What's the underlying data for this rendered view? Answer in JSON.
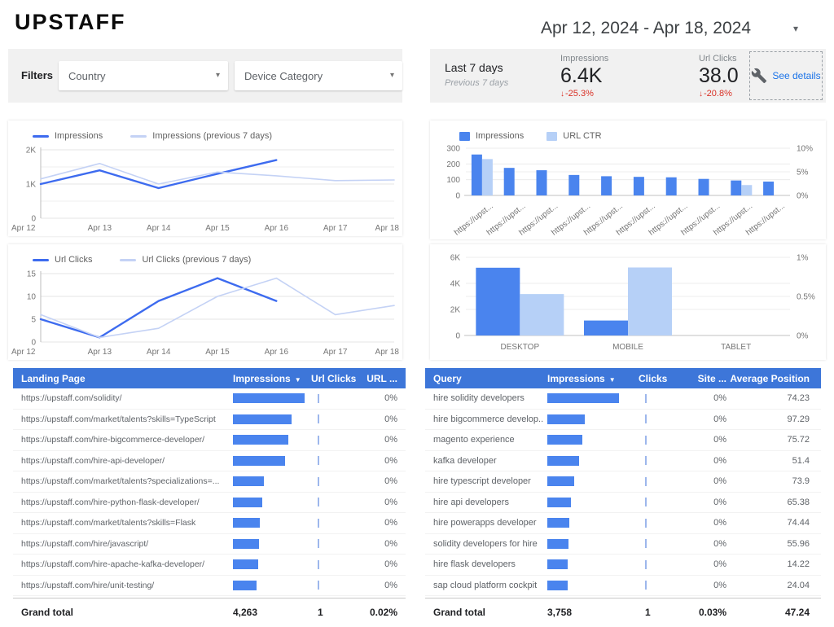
{
  "header": {
    "logo": "UPSTAFF",
    "date_range": "Apr 12, 2024 - Apr 18, 2024"
  },
  "filters": {
    "label": "Filters",
    "country": "Country",
    "device_category": "Device Category"
  },
  "scorecard": {
    "period": "Last 7 days",
    "period_sub": "Previous 7 days",
    "metrics": [
      {
        "label": "Impressions",
        "value": "6.4K",
        "change": "-25.3%",
        "direction": "down"
      },
      {
        "label": "Url Clicks",
        "value": "38.0",
        "change": "-20.8%",
        "direction": "down"
      }
    ],
    "see_details": "See details"
  },
  "colors": {
    "series_primary": "#3d6bef",
    "series_secondary": "#c4d2f5",
    "bar_primary": "#4a84ee",
    "bar_secondary": "#b6d0f7",
    "table_header": "#3d76d9",
    "link": "#1a73e8",
    "negative": "#d93025",
    "filter_bg": "#f1f1f1"
  },
  "chart_data": [
    {
      "id": "impressions-line",
      "type": "line",
      "legend": [
        "Impressions",
        "Impressions (previous 7 days)"
      ],
      "x": [
        "Apr 12",
        "Apr 13",
        "Apr 14",
        "Apr 15",
        "Apr 16",
        "Apr 17",
        "Apr 18"
      ],
      "series": [
        {
          "name": "Impressions",
          "values": [
            1000,
            1400,
            880,
            1300,
            1700,
            null,
            null
          ]
        },
        {
          "name": "Impressions (previous 7 days)",
          "values": [
            1150,
            1600,
            1000,
            1350,
            1240,
            1100,
            1120
          ]
        }
      ],
      "ylim": [
        0,
        2000
      ],
      "yticks": [
        {
          "v": 0,
          "label": "0"
        },
        {
          "v": 1000,
          "label": "1K"
        },
        {
          "v": 2000,
          "label": "2K"
        }
      ],
      "grid_values": [
        500,
        1500
      ]
    },
    {
      "id": "impressions-by-url",
      "type": "bar",
      "legend": [
        "Impressions",
        "URL CTR"
      ],
      "categories": [
        "https://upst...",
        "https://upst...",
        "https://upst...",
        "https://upst...",
        "https://upst...",
        "https://upst...",
        "https://upst...",
        "https://upst...",
        "https://upst...",
        "https://upst..."
      ],
      "rotate_labels": true,
      "series": [
        {
          "name": "Impressions",
          "axis": "left",
          "values": [
            260,
            175,
            160,
            130,
            122,
            118,
            115,
            105,
            95,
            88
          ]
        },
        {
          "name": "URL CTR",
          "axis": "right",
          "values": [
            7.7,
            0,
            0,
            0,
            0,
            0,
            0,
            0,
            2.2,
            0
          ]
        }
      ],
      "left_axis": {
        "max": 300,
        "ticks": [
          {
            "v": 0,
            "label": "0"
          },
          {
            "v": 100,
            "label": "100"
          },
          {
            "v": 200,
            "label": "200"
          },
          {
            "v": 300,
            "label": "300"
          }
        ]
      },
      "right_axis": {
        "max": 10,
        "ticks": [
          {
            "v": 0,
            "label": "0%"
          },
          {
            "v": 5,
            "label": "5%"
          },
          {
            "v": 10,
            "label": "10%"
          }
        ]
      }
    },
    {
      "id": "url-clicks-line",
      "type": "line",
      "legend": [
        "Url Clicks",
        "Url Clicks (previous 7 days)"
      ],
      "x": [
        "Apr 12",
        "Apr 13",
        "Apr 14",
        "Apr 15",
        "Apr 16",
        "Apr 17",
        "Apr 18"
      ],
      "series": [
        {
          "name": "Url Clicks",
          "values": [
            5,
            1,
            9,
            14,
            9,
            null,
            null
          ]
        },
        {
          "name": "Url Clicks (previous 7 days)",
          "values": [
            6,
            1,
            3,
            10,
            14,
            6,
            8
          ]
        }
      ],
      "ylim": [
        0,
        15
      ],
      "yticks": [
        {
          "v": 0,
          "label": "0"
        },
        {
          "v": 5,
          "label": "5"
        },
        {
          "v": 10,
          "label": "10"
        },
        {
          "v": 15,
          "label": "15"
        }
      ],
      "grid_values": []
    },
    {
      "id": "impressions-by-device",
      "type": "bar",
      "legend": [],
      "categories": [
        "DESKTOP",
        "MOBILE",
        "TABLET"
      ],
      "rotate_labels": false,
      "series": [
        {
          "name": "Impressions",
          "axis": "left",
          "values": [
            5200,
            1150,
            0
          ]
        },
        {
          "name": "URL CTR",
          "axis": "right",
          "values": [
            0.53,
            0.87,
            0
          ]
        }
      ],
      "left_axis": {
        "max": 6000,
        "ticks": [
          {
            "v": 0,
            "label": "0"
          },
          {
            "v": 2000,
            "label": "2K"
          },
          {
            "v": 4000,
            "label": "4K"
          },
          {
            "v": 6000,
            "label": "6K"
          }
        ]
      },
      "right_axis": {
        "max": 1,
        "ticks": [
          {
            "v": 0,
            "label": "0%"
          },
          {
            "v": 0.5,
            "label": "0.5%"
          },
          {
            "v": 1,
            "label": "1%"
          }
        ]
      }
    }
  ],
  "tables": {
    "landing_table": {
      "headers": [
        "Landing Page",
        "Impressions",
        "Url Clicks",
        "URL ..."
      ],
      "rows": [
        {
          "page": "https://upstaff.com/solidity/",
          "bar_pct": 100,
          "url_ctr": "0%"
        },
        {
          "page": "https://upstaff.com/market/talents?skills=TypeScript",
          "bar_pct": 82,
          "url_ctr": "0%"
        },
        {
          "page": "https://upstaff.com/hire-bigcommerce-developer/",
          "bar_pct": 77,
          "url_ctr": "0%"
        },
        {
          "page": "https://upstaff.com/hire-api-developer/",
          "bar_pct": 73,
          "url_ctr": "0%"
        },
        {
          "page": "https://upstaff.com/market/talents?specializations=...",
          "bar_pct": 43,
          "url_ctr": "0%"
        },
        {
          "page": "https://upstaff.com/hire-python-flask-developer/",
          "bar_pct": 41,
          "url_ctr": "0%"
        },
        {
          "page": "https://upstaff.com/market/talents?skills=Flask",
          "bar_pct": 38,
          "url_ctr": "0%"
        },
        {
          "page": "https://upstaff.com/hire/javascript/",
          "bar_pct": 36,
          "url_ctr": "0%"
        },
        {
          "page": "https://upstaff.com/hire-apache-kafka-developer/",
          "bar_pct": 35,
          "url_ctr": "0%"
        },
        {
          "page": "https://upstaff.com/hire/unit-testing/",
          "bar_pct": 33,
          "url_ctr": "0%"
        }
      ],
      "grand_total": {
        "label": "Grand total",
        "impressions": "4,263",
        "url_clicks": "1",
        "url_ctr": "0.02%"
      }
    },
    "query_table": {
      "headers": [
        "Query",
        "Impressions",
        "Clicks",
        "Site ...",
        "Average Position"
      ],
      "rows": [
        {
          "query": "hire solidity developers",
          "bar_pct": 100,
          "site_ctr": "0%",
          "avg_pos": "74.23"
        },
        {
          "query": "hire bigcommerce develop..",
          "bar_pct": 52,
          "site_ctr": "0%",
          "avg_pos": "97.29"
        },
        {
          "query": "magento experience",
          "bar_pct": 49,
          "site_ctr": "0%",
          "avg_pos": "75.72"
        },
        {
          "query": "kafka developer",
          "bar_pct": 44,
          "site_ctr": "0%",
          "avg_pos": "51.4"
        },
        {
          "query": "hire typescript developer",
          "bar_pct": 38,
          "site_ctr": "0%",
          "avg_pos": "73.9"
        },
        {
          "query": "hire api developers",
          "bar_pct": 33,
          "site_ctr": "0%",
          "avg_pos": "65.38"
        },
        {
          "query": "hire powerapps developer",
          "bar_pct": 31,
          "site_ctr": "0%",
          "avg_pos": "74.44"
        },
        {
          "query": "solidity developers for hire",
          "bar_pct": 29,
          "site_ctr": "0%",
          "avg_pos": "55.96"
        },
        {
          "query": "hire flask developers",
          "bar_pct": 28,
          "site_ctr": "0%",
          "avg_pos": "14.22"
        },
        {
          "query": "sap cloud platform cockpit",
          "bar_pct": 28,
          "site_ctr": "0%",
          "avg_pos": "24.04"
        }
      ],
      "grand_total": {
        "label": "Grand total",
        "impressions": "3,758",
        "clicks": "1",
        "site_ctr": "0.03%",
        "avg_pos": "47.24"
      }
    }
  }
}
